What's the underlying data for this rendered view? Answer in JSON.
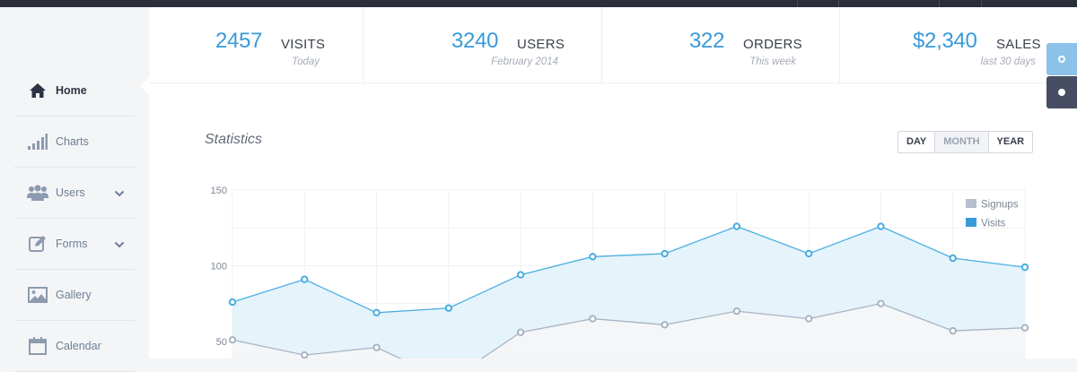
{
  "sidebar": {
    "items": [
      {
        "label": "Home",
        "icon": "home-icon",
        "active": true
      },
      {
        "label": "Charts",
        "icon": "bar-chart-icon",
        "active": false
      },
      {
        "label": "Users",
        "icon": "users-icon",
        "active": false,
        "expandable": true
      },
      {
        "label": "Forms",
        "icon": "edit-icon",
        "active": false,
        "expandable": true
      },
      {
        "label": "Gallery",
        "icon": "image-icon",
        "active": false
      },
      {
        "label": "Calendar",
        "icon": "calendar-icon",
        "active": false
      }
    ]
  },
  "stats": [
    {
      "value": "2457",
      "label": "VISITS",
      "sub": "Today"
    },
    {
      "value": "3240",
      "label": "USERS",
      "sub": "February 2014"
    },
    {
      "value": "322",
      "label": "ORDERS",
      "sub": "This week"
    },
    {
      "value": "$2,340",
      "label": "SALES",
      "sub": "last 30 days"
    }
  ],
  "panel": {
    "title": "Statistics",
    "ranges": [
      "DAY",
      "MONTH",
      "YEAR"
    ],
    "selected_range": "MONTH"
  },
  "colors": {
    "accent": "#3a9ad9",
    "visits_line": "#4aaee0",
    "signups_line": "#a9b4c4",
    "tab_light": "#8cc2ea",
    "tab_dark": "#474d63"
  },
  "chart_data": {
    "type": "area",
    "x": [
      0,
      1,
      2,
      3,
      4,
      5,
      6,
      7,
      8,
      9,
      10,
      11
    ],
    "y_ticks": [
      50,
      100,
      150
    ],
    "ylim": [
      15,
      150
    ],
    "grid": true,
    "legend_position": "top-right",
    "series": [
      {
        "name": "Signups",
        "values": [
          51,
          41,
          46,
          24,
          56,
          65,
          61,
          70,
          65,
          75,
          57,
          59
        ]
      },
      {
        "name": "Visits",
        "values": [
          76,
          91,
          69,
          72,
          94,
          106,
          108,
          126,
          108,
          126,
          105,
          99
        ]
      }
    ]
  }
}
